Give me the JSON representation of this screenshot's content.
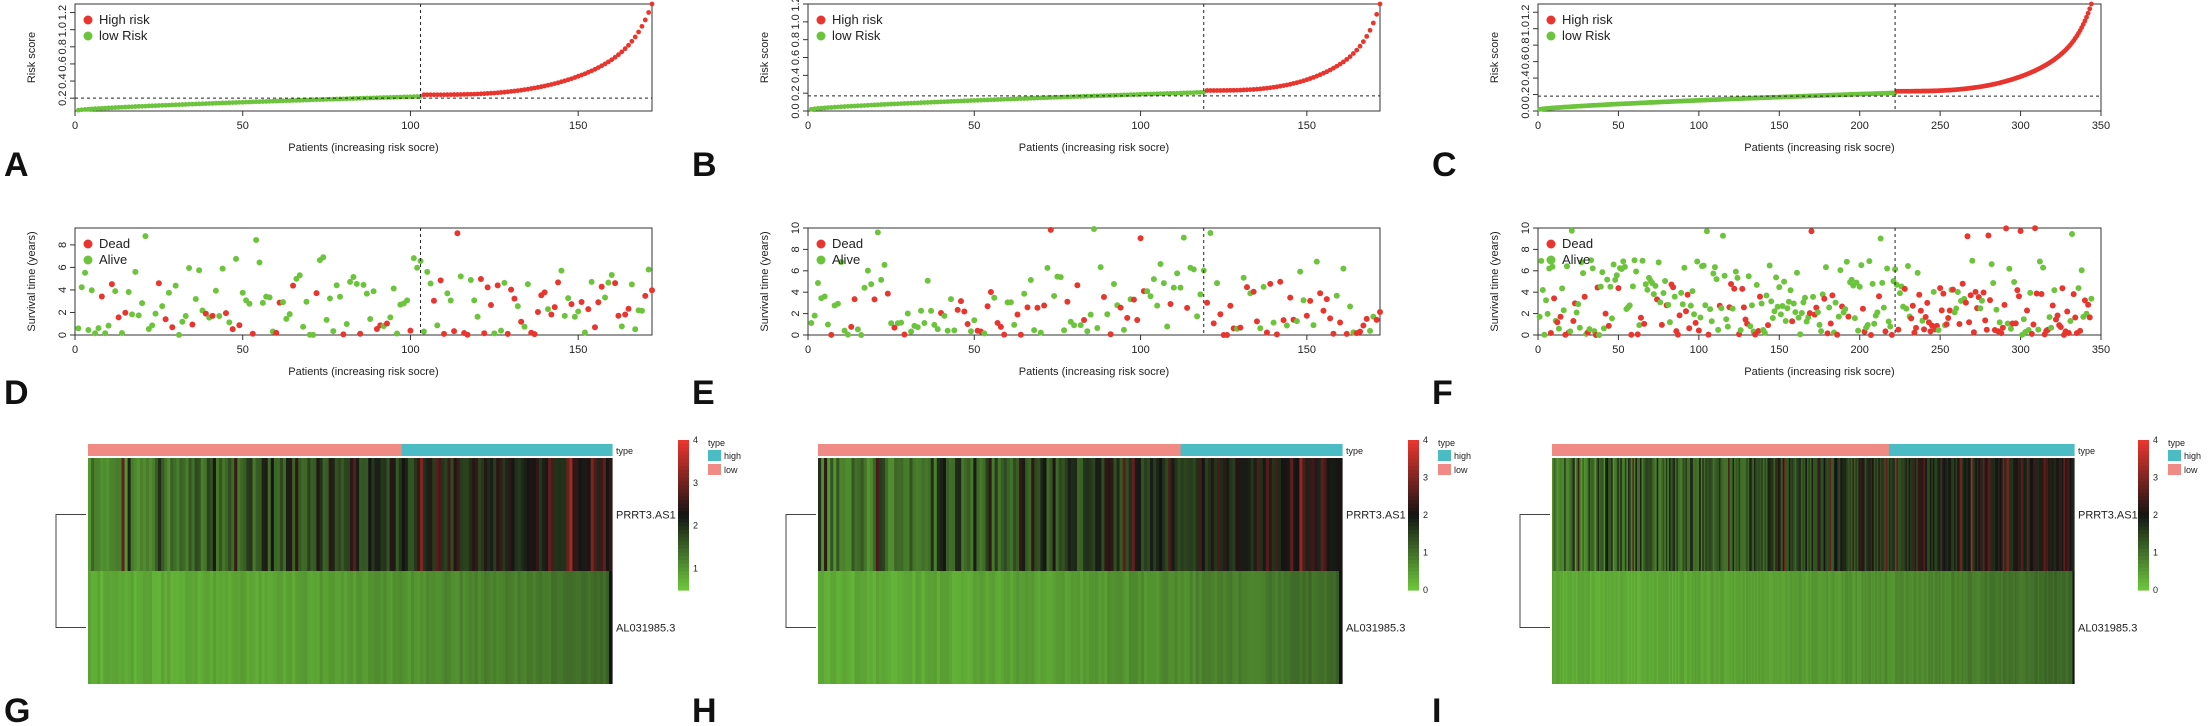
{
  "colors": {
    "high": "#e8352e",
    "low": "#6cc43c",
    "dead": "#e8352e",
    "alive": "#6cc43c",
    "type_high": "#4bbcc4",
    "type_low": "#f08a85",
    "heat_low": "#6cc43c",
    "heat_mid": "#141414",
    "heat_high": "#e8352e"
  },
  "panels": {
    "A": {
      "label": "A"
    },
    "B": {
      "label": "B"
    },
    "C": {
      "label": "C"
    },
    "D": {
      "label": "D"
    },
    "E": {
      "label": "E"
    },
    "F": {
      "label": "F"
    },
    "G": {
      "label": "G"
    },
    "H": {
      "label": "H"
    },
    "I": {
      "label": "I"
    }
  },
  "chart_data": [
    {
      "id": "A",
      "type": "scatter",
      "subtype": "risk-score",
      "n": 172,
      "cutoff_index": 103,
      "cutoff_score": 0.2,
      "ylabel": "Risk score",
      "xlabel": "Patients (increasing risk socre)",
      "xlim": [
        0,
        172
      ],
      "xticks": [
        0,
        50,
        100,
        150
      ],
      "ylim": [
        0.05,
        1.3
      ],
      "yticks": [
        0.2,
        0.4,
        0.6,
        0.8,
        1.0,
        1.2
      ],
      "legend": [
        "High risk",
        "low Risk"
      ],
      "min_score": 0.06,
      "score_at_cutoff": 0.22,
      "high_start": 0.24,
      "max_score": 1.3
    },
    {
      "id": "B",
      "type": "scatter",
      "subtype": "risk-score",
      "n": 172,
      "cutoff_index": 119,
      "cutoff_score": 0.17,
      "ylabel": "Risk score",
      "xlabel": "Patients (increasing risk socre)",
      "xlim": [
        0,
        172
      ],
      "xticks": [
        0,
        50,
        100,
        150
      ],
      "ylim": [
        0,
        1.2
      ],
      "yticks": [
        0.0,
        0.2,
        0.4,
        0.6,
        0.8,
        1.0,
        1.2
      ],
      "legend": [
        "High risk",
        "low Risk"
      ],
      "min_score": 0.02,
      "score_at_cutoff": 0.21,
      "high_start": 0.23,
      "max_score": 1.2
    },
    {
      "id": "C",
      "type": "scatter",
      "subtype": "risk-score",
      "n": 344,
      "cutoff_index": 222,
      "cutoff_score": 0.18,
      "ylabel": "Risk score",
      "xlabel": "Patients (increasing risk socre)",
      "xlim": [
        0,
        350
      ],
      "xticks": [
        0,
        50,
        100,
        150,
        200,
        250,
        300,
        350
      ],
      "ylim": [
        0,
        1.3
      ],
      "yticks": [
        0.0,
        0.2,
        0.4,
        0.6,
        0.8,
        1.0,
        1.2
      ],
      "legend": [
        "High risk",
        "low Risk"
      ],
      "min_score": 0.02,
      "score_at_cutoff": 0.22,
      "high_start": 0.24,
      "max_score": 1.3
    },
    {
      "id": "D",
      "type": "scatter",
      "subtype": "survival",
      "n": 172,
      "cutoff_index": 103,
      "ylabel": "Survival time (years)",
      "xlabel": "Patients (increasing risk socre)",
      "xlim": [
        0,
        172
      ],
      "xticks": [
        0,
        50,
        100,
        150
      ],
      "ylim": [
        0,
        9.5
      ],
      "yticks": [
        0,
        2,
        4,
        6,
        8
      ],
      "legend": [
        "Dead",
        "Alive"
      ],
      "max_time": 9.3
    },
    {
      "id": "E",
      "type": "scatter",
      "subtype": "survival",
      "n": 172,
      "cutoff_index": 119,
      "ylabel": "Survival time (years)",
      "xlabel": "Patients (increasing risk socre)",
      "xlim": [
        0,
        172
      ],
      "xticks": [
        0,
        50,
        100,
        150
      ],
      "ylim": [
        0,
        10
      ],
      "yticks": [
        0,
        2,
        4,
        6,
        8,
        10
      ],
      "legend": [
        "Dead",
        "Alive"
      ],
      "max_time": 10
    },
    {
      "id": "F",
      "type": "scatter",
      "subtype": "survival",
      "n": 344,
      "cutoff_index": 222,
      "ylabel": "Survival time (years)",
      "xlabel": "Patients (increasing risk socre)",
      "xlim": [
        0,
        350
      ],
      "xticks": [
        0,
        50,
        100,
        150,
        200,
        250,
        300,
        350
      ],
      "ylim": [
        0,
        10
      ],
      "yticks": [
        0,
        2,
        4,
        6,
        8,
        10
      ],
      "legend": [
        "Dead",
        "Alive"
      ],
      "max_time": 10
    },
    {
      "id": "G",
      "type": "heatmap",
      "n": 172,
      "cutoff_index": 103,
      "rows": [
        "PRRT3.AS1",
        "AL031985.3"
      ],
      "annotation_label": "type",
      "annotation_levels": [
        "high",
        "low"
      ],
      "scale_ticks": [
        "4",
        "3",
        "2",
        "1"
      ],
      "scale_range": [
        0.5,
        4
      ]
    },
    {
      "id": "H",
      "type": "heatmap",
      "n": 172,
      "cutoff_index": 119,
      "rows": [
        "PRRT3.AS1",
        "AL031985.3"
      ],
      "annotation_label": "type",
      "annotation_levels": [
        "high",
        "low"
      ],
      "scale_ticks": [
        "4",
        "3",
        "2",
        "1",
        "0"
      ],
      "scale_range": [
        0,
        4
      ]
    },
    {
      "id": "I",
      "type": "heatmap",
      "n": 344,
      "cutoff_index": 222,
      "rows": [
        "PRRT3.AS1",
        "AL031985.3"
      ],
      "annotation_label": "type",
      "annotation_levels": [
        "high",
        "low"
      ],
      "scale_ticks": [
        "4",
        "3",
        "2",
        "1",
        "0"
      ],
      "scale_range": [
        0,
        4
      ]
    }
  ]
}
